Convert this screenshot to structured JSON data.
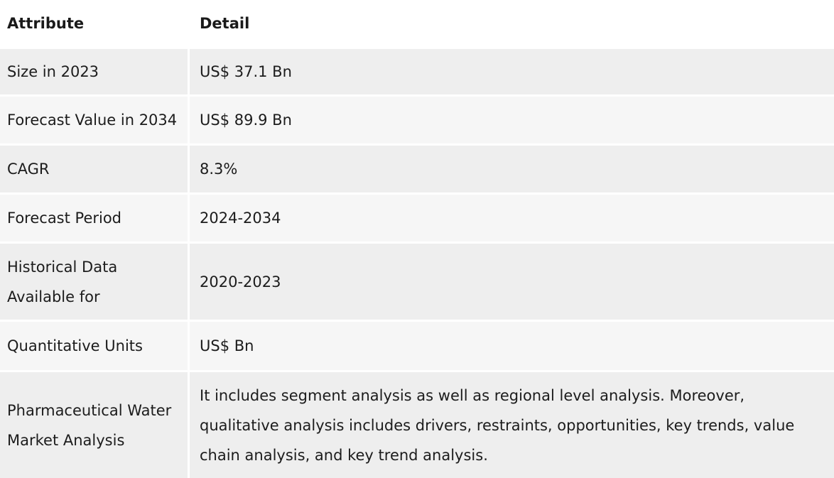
{
  "table": {
    "headers": {
      "attribute": "Attribute",
      "detail": "Detail"
    },
    "rows": [
      {
        "attribute": "Size in 2023",
        "detail": "US$ 37.1 Bn"
      },
      {
        "attribute": "Forecast Value in 2034",
        "detail": "US$ 89.9 Bn"
      },
      {
        "attribute": "CAGR",
        "detail": "8.3%"
      },
      {
        "attribute": "Forecast Period",
        "detail": "2024-2034"
      },
      {
        "attribute": "Historical Data Available for",
        "detail": "2020-2023"
      },
      {
        "attribute": "Quantitative Units",
        "detail": "US$ Bn"
      },
      {
        "attribute": "Pharmaceutical Water Market Analysis",
        "detail": "It includes segment analysis as well as regional level analysis. Moreover, qualitative analysis includes drivers, restraints, opportunities, key trends, value chain analysis, and key trend analysis."
      }
    ]
  }
}
